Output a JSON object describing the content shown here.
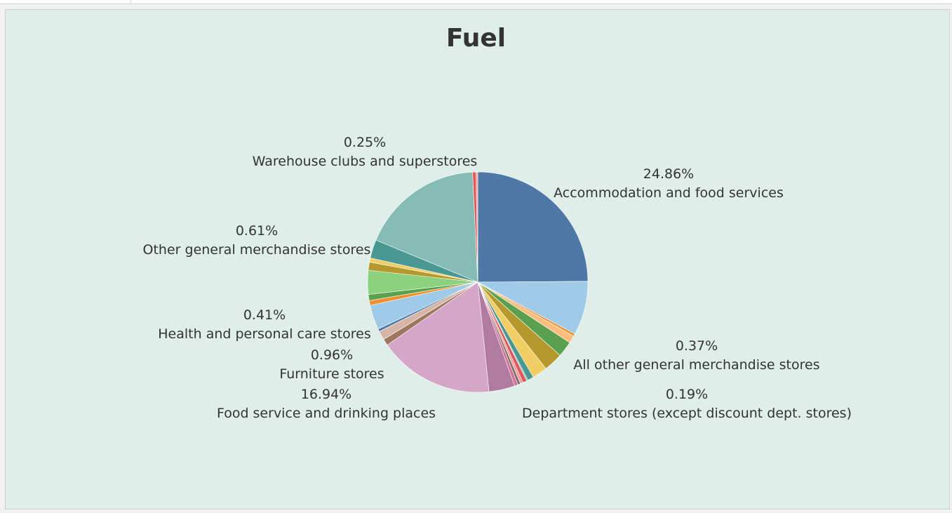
{
  "colors": {
    "panel_bg": "#dfeee9"
  },
  "chart_data": {
    "type": "pie",
    "title": "Fuel",
    "slices": [
      {
        "label": "Accommodation and food services",
        "value": 24.86,
        "color": "#4e79a7"
      },
      {
        "label": "",
        "value": 7.9,
        "color": "#a0cbe8"
      },
      {
        "label": "All other general merchandise stores",
        "value": 0.37,
        "color": "#f28e2b"
      },
      {
        "label": "",
        "value": 1.1,
        "color": "#ffbe7d"
      },
      {
        "label": "",
        "value": 2.3,
        "color": "#59a14f"
      },
      {
        "label": "",
        "value": 2.8,
        "color": "#b6992d"
      },
      {
        "label": "",
        "value": 2.2,
        "color": "#f1ce63"
      },
      {
        "label": "",
        "value": 0.9,
        "color": "#499894"
      },
      {
        "label": "Department stores (except discount dept. stores)",
        "value": 0.19,
        "color": "#86bcb6"
      },
      {
        "label": "",
        "value": 0.6,
        "color": "#e15759"
      },
      {
        "label": "",
        "value": 0.4,
        "color": "#ff9d9a"
      },
      {
        "label": "",
        "value": 0.4,
        "color": "#79706e"
      },
      {
        "label": "",
        "value": 0.5,
        "color": "#d37295"
      },
      {
        "label": "",
        "value": 3.8,
        "color": "#b07aa1"
      },
      {
        "label": "Food service and drinking places",
        "value": 16.94,
        "color": "#d4a6c8"
      },
      {
        "label": "Furniture stores",
        "value": 0.96,
        "color": "#9d7660"
      },
      {
        "label": "",
        "value": 1.3,
        "color": "#d7b5a6"
      },
      {
        "label": "Health and personal care stores",
        "value": 0.41,
        "color": "#4e79a7"
      },
      {
        "label": "",
        "value": 3.6,
        "color": "#a0cbe8"
      },
      {
        "label": "",
        "value": 0.7,
        "color": "#f28e2b"
      },
      {
        "label": "",
        "value": 0.9,
        "color": "#59a14f"
      },
      {
        "label": "",
        "value": 3.5,
        "color": "#8cd17d"
      },
      {
        "label": "",
        "value": 1.2,
        "color": "#b6992d"
      },
      {
        "label": "Other general merchandise stores",
        "value": 0.61,
        "color": "#f1ce63"
      },
      {
        "label": "",
        "value": 2.7,
        "color": "#499894"
      },
      {
        "label": "",
        "value": 18.0,
        "color": "#86bcb6"
      },
      {
        "label": "",
        "value": 0.5,
        "color": "#e15759"
      },
      {
        "label": "Warehouse clubs and superstores",
        "value": 0.25,
        "color": "#ff9d9a"
      }
    ],
    "labels": [
      {
        "pct": "24.86%",
        "name": "Accommodation and food services"
      },
      {
        "pct": "0.37%",
        "name": "All other general merchandise stores"
      },
      {
        "pct": "0.19%",
        "name": "Department stores (except discount dept. stores)"
      },
      {
        "pct": "16.94%",
        "name": "Food service and drinking places"
      },
      {
        "pct": "0.96%",
        "name": "Furniture stores"
      },
      {
        "pct": "0.41%",
        "name": "Health and personal care stores"
      },
      {
        "pct": "0.61%",
        "name": "Other general merchandise stores"
      },
      {
        "pct": "0.25%",
        "name": "Warehouse clubs and superstores"
      }
    ]
  }
}
